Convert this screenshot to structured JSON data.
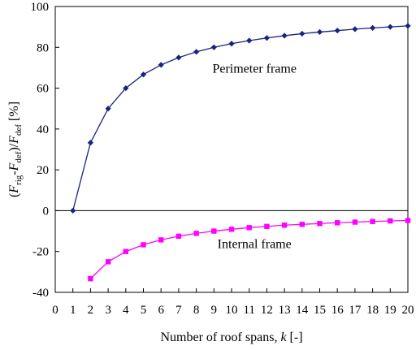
{
  "chart_data": {
    "type": "line",
    "xlabel_prefix": "Number of roof spans, ",
    "xlabel_var": "k",
    "xlabel_suffix": "  [-]",
    "ylabel_parts": [
      "(",
      "F",
      "rig",
      "-",
      "F",
      "def",
      ")/",
      "F",
      "def",
      " [%]"
    ],
    "xlim": [
      0,
      20
    ],
    "ylim": [
      -40,
      100
    ],
    "x_ticks": [
      0,
      1,
      2,
      3,
      4,
      5,
      6,
      7,
      8,
      9,
      10,
      11,
      12,
      13,
      14,
      15,
      16,
      17,
      18,
      19,
      20
    ],
    "y_ticks": [
      -40,
      -20,
      0,
      20,
      40,
      60,
      80,
      100
    ],
    "grid": false,
    "zero_line": true,
    "series": [
      {
        "name": "Perimeter frame",
        "color": "#1a237e",
        "marker": "diamond",
        "x": [
          1,
          2,
          3,
          4,
          5,
          6,
          7,
          8,
          9,
          10,
          11,
          12,
          13,
          14,
          15,
          16,
          17,
          18,
          19,
          20
        ],
        "y": [
          0,
          33.3,
          50,
          60,
          66.7,
          71.4,
          75,
          77.8,
          80,
          81.8,
          83.3,
          84.6,
          85.7,
          86.7,
          87.5,
          88.2,
          88.9,
          89.5,
          90,
          90.5
        ]
      },
      {
        "name": "Internal frame",
        "color": "#ff00ff",
        "marker": "square",
        "x": [
          2,
          3,
          4,
          5,
          6,
          7,
          8,
          9,
          10,
          11,
          12,
          13,
          14,
          15,
          16,
          17,
          18,
          19,
          20
        ],
        "y": [
          -33.3,
          -25,
          -20,
          -16.7,
          -14.3,
          -12.5,
          -11.1,
          -10,
          -9.1,
          -8.3,
          -7.7,
          -7.1,
          -6.7,
          -6.3,
          -5.9,
          -5.6,
          -5.3,
          -5,
          -4.8
        ]
      }
    ]
  }
}
